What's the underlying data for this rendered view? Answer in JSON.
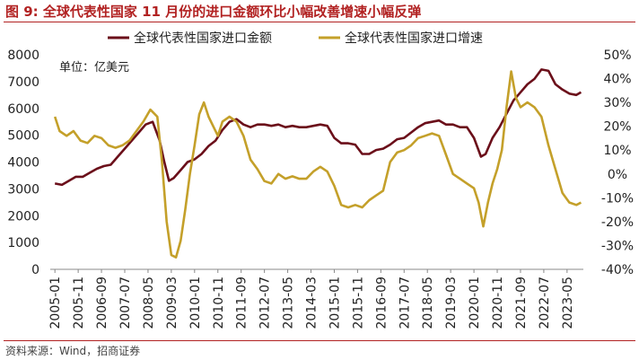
{
  "figure": {
    "title": "图 9:  全球代表性国家 11 月份的进口金额环比小幅改善增速小幅反弹",
    "source": "资料来源：Wind，招商证券"
  },
  "chart_data": {
    "type": "line",
    "unit_label": "单位：亿美元",
    "legend_position": "top-center",
    "grid": false,
    "x_tick_labels": [
      "2005-01",
      "2005-11",
      "2006-09",
      "2007-07",
      "2008-05",
      "2009-03",
      "2010-01",
      "2010-11",
      "2011-09",
      "2012-07",
      "2013-05",
      "2014-03",
      "2015-01",
      "2015-11",
      "2016-09",
      "2017-07",
      "2018-05",
      "2019-03",
      "2020-01",
      "2020-11",
      "2021-09",
      "2022-07",
      "2023-05"
    ],
    "y_left": {
      "min": 0,
      "max": 8000,
      "step": 1000,
      "tick_labels": [
        "0",
        "1000",
        "2000",
        "3000",
        "4000",
        "5000",
        "6000",
        "7000",
        "8000"
      ]
    },
    "y_right": {
      "min": -40,
      "max": 50,
      "step": 10,
      "tick_labels": [
        "-40%",
        "-30%",
        "-20%",
        "-10%",
        "0%",
        "10%",
        "20%",
        "30%",
        "40%",
        "50%"
      ]
    },
    "series": [
      {
        "name": "全球代表性国家进口金额",
        "axis": "left",
        "color": "#6b0f1a",
        "points": [
          [
            "2005-01",
            3200
          ],
          [
            "2005-04",
            3150
          ],
          [
            "2005-07",
            3300
          ],
          [
            "2005-10",
            3450
          ],
          [
            "2006-01",
            3450
          ],
          [
            "2006-04",
            3600
          ],
          [
            "2006-07",
            3750
          ],
          [
            "2006-10",
            3850
          ],
          [
            "2007-01",
            3900
          ],
          [
            "2007-04",
            4200
          ],
          [
            "2007-07",
            4500
          ],
          [
            "2007-10",
            4800
          ],
          [
            "2008-01",
            5100
          ],
          [
            "2008-04",
            5400
          ],
          [
            "2008-07",
            5500
          ],
          [
            "2008-10",
            4800
          ],
          [
            "2008-12",
            4000
          ],
          [
            "2009-02",
            3300
          ],
          [
            "2009-04",
            3400
          ],
          [
            "2009-07",
            3700
          ],
          [
            "2009-10",
            4000
          ],
          [
            "2010-01",
            4100
          ],
          [
            "2010-04",
            4300
          ],
          [
            "2010-07",
            4600
          ],
          [
            "2010-10",
            4800
          ],
          [
            "2011-01",
            5200
          ],
          [
            "2011-04",
            5500
          ],
          [
            "2011-07",
            5600
          ],
          [
            "2011-10",
            5400
          ],
          [
            "2012-01",
            5300
          ],
          [
            "2012-04",
            5400
          ],
          [
            "2012-07",
            5400
          ],
          [
            "2012-10",
            5350
          ],
          [
            "2013-01",
            5400
          ],
          [
            "2013-04",
            5300
          ],
          [
            "2013-07",
            5350
          ],
          [
            "2013-10",
            5300
          ],
          [
            "2014-01",
            5300
          ],
          [
            "2014-04",
            5350
          ],
          [
            "2014-07",
            5400
          ],
          [
            "2014-10",
            5350
          ],
          [
            "2015-01",
            4900
          ],
          [
            "2015-04",
            4700
          ],
          [
            "2015-07",
            4700
          ],
          [
            "2015-10",
            4650
          ],
          [
            "2016-01",
            4300
          ],
          [
            "2016-04",
            4300
          ],
          [
            "2016-07",
            4450
          ],
          [
            "2016-10",
            4500
          ],
          [
            "2017-01",
            4650
          ],
          [
            "2017-04",
            4850
          ],
          [
            "2017-07",
            4900
          ],
          [
            "2017-10",
            5100
          ],
          [
            "2018-01",
            5300
          ],
          [
            "2018-04",
            5450
          ],
          [
            "2018-07",
            5500
          ],
          [
            "2018-10",
            5550
          ],
          [
            "2019-01",
            5400
          ],
          [
            "2019-04",
            5400
          ],
          [
            "2019-07",
            5300
          ],
          [
            "2019-10",
            5300
          ],
          [
            "2020-01",
            4900
          ],
          [
            "2020-04",
            4200
          ],
          [
            "2020-06",
            4300
          ],
          [
            "2020-09",
            4900
          ],
          [
            "2020-12",
            5300
          ],
          [
            "2021-03",
            5800
          ],
          [
            "2021-06",
            6300
          ],
          [
            "2021-09",
            6600
          ],
          [
            "2021-12",
            6900
          ],
          [
            "2022-03",
            7100
          ],
          [
            "2022-06",
            7450
          ],
          [
            "2022-09",
            7400
          ],
          [
            "2022-12",
            6900
          ],
          [
            "2023-03",
            6700
          ],
          [
            "2023-06",
            6550
          ],
          [
            "2023-09",
            6500
          ],
          [
            "2023-11",
            6600
          ]
        ]
      },
      {
        "name": "全球代表性国家进口增速",
        "axis": "right",
        "color": "#c4a02a",
        "points": [
          [
            "2005-01",
            24
          ],
          [
            "2005-03",
            18
          ],
          [
            "2005-06",
            16
          ],
          [
            "2005-09",
            18
          ],
          [
            "2005-12",
            14
          ],
          [
            "2006-03",
            13
          ],
          [
            "2006-06",
            16
          ],
          [
            "2006-09",
            15
          ],
          [
            "2006-12",
            12
          ],
          [
            "2007-03",
            11
          ],
          [
            "2007-06",
            12
          ],
          [
            "2007-09",
            14
          ],
          [
            "2007-12",
            18
          ],
          [
            "2008-03",
            22
          ],
          [
            "2008-06",
            27
          ],
          [
            "2008-09",
            24
          ],
          [
            "2008-11",
            5
          ],
          [
            "2009-01",
            -20
          ],
          [
            "2009-03",
            -34
          ],
          [
            "2009-05",
            -35
          ],
          [
            "2009-07",
            -28
          ],
          [
            "2009-09",
            -15
          ],
          [
            "2009-11",
            0
          ],
          [
            "2010-01",
            12
          ],
          [
            "2010-03",
            25
          ],
          [
            "2010-05",
            30
          ],
          [
            "2010-07",
            24
          ],
          [
            "2010-09",
            20
          ],
          [
            "2010-11",
            16
          ],
          [
            "2011-01",
            22
          ],
          [
            "2011-04",
            24
          ],
          [
            "2011-07",
            22
          ],
          [
            "2011-10",
            16
          ],
          [
            "2012-01",
            6
          ],
          [
            "2012-04",
            2
          ],
          [
            "2012-07",
            -3
          ],
          [
            "2012-10",
            -4
          ],
          [
            "2013-01",
            0
          ],
          [
            "2013-04",
            -2
          ],
          [
            "2013-07",
            -1
          ],
          [
            "2013-10",
            -2
          ],
          [
            "2014-01",
            -2
          ],
          [
            "2014-04",
            1
          ],
          [
            "2014-07",
            3
          ],
          [
            "2014-10",
            1
          ],
          [
            "2015-01",
            -5
          ],
          [
            "2015-04",
            -13
          ],
          [
            "2015-07",
            -14
          ],
          [
            "2015-10",
            -13
          ],
          [
            "2016-01",
            -14
          ],
          [
            "2016-04",
            -11
          ],
          [
            "2016-07",
            -9
          ],
          [
            "2016-10",
            -7
          ],
          [
            "2017-01",
            5
          ],
          [
            "2017-04",
            9
          ],
          [
            "2017-07",
            10
          ],
          [
            "2017-10",
            12
          ],
          [
            "2018-01",
            15
          ],
          [
            "2018-04",
            16
          ],
          [
            "2018-07",
            17
          ],
          [
            "2018-10",
            16
          ],
          [
            "2019-01",
            8
          ],
          [
            "2019-04",
            0
          ],
          [
            "2019-07",
            -2
          ],
          [
            "2019-10",
            -4
          ],
          [
            "2020-01",
            -6
          ],
          [
            "2020-03",
            -12
          ],
          [
            "2020-05",
            -22
          ],
          [
            "2020-07",
            -12
          ],
          [
            "2020-09",
            -4
          ],
          [
            "2020-11",
            2
          ],
          [
            "2021-01",
            10
          ],
          [
            "2021-03",
            28
          ],
          [
            "2021-05",
            43
          ],
          [
            "2021-07",
            32
          ],
          [
            "2021-09",
            28
          ],
          [
            "2021-12",
            30
          ],
          [
            "2022-03",
            28
          ],
          [
            "2022-06",
            24
          ],
          [
            "2022-09",
            12
          ],
          [
            "2022-12",
            2
          ],
          [
            "2023-03",
            -8
          ],
          [
            "2023-06",
            -12
          ],
          [
            "2023-09",
            -13
          ],
          [
            "2023-11",
            -12
          ]
        ]
      }
    ]
  }
}
